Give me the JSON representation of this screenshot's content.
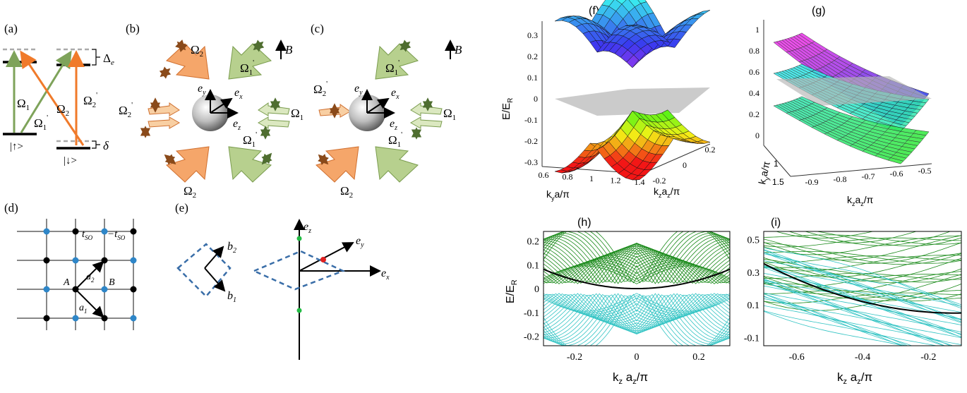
{
  "panels": {
    "a": "(a)",
    "b": "(b)",
    "c": "(c)",
    "d": "(d)",
    "e": "(e)",
    "f": "(f)",
    "g": "(g)",
    "h": "(h)",
    "i": "(i)"
  },
  "level_diagram": {
    "delta_e": "Δ",
    "delta_e_sub": "e",
    "delta": "δ",
    "omega": "Ω",
    "sub1": "1",
    "sub2": "2",
    "prime": "'",
    "spin_up": "|↑>",
    "spin_down": "|↓>"
  },
  "beams": {
    "omega": "Ω",
    "sub1": "1",
    "sub2": "2",
    "prime": "'",
    "B": "B",
    "ex": "e",
    "ex_sub": "x",
    "ey": "e",
    "ey_sub": "y",
    "ez": "e",
    "ez_sub": "z"
  },
  "lattice": {
    "tso": "t",
    "tso_sub": "SO",
    "minus_tso": "−t",
    "A": "A",
    "B": "B",
    "a1": "a",
    "a1_sub": "1",
    "a2": "a",
    "a2_sub": "2"
  },
  "reciprocal": {
    "b1": "b",
    "b1_sub": "1",
    "b2": "b",
    "b2_sub": "2",
    "ex": "e",
    "ex_sub": "x",
    "ey": "e",
    "ey_sub": "y",
    "ez": "e",
    "ez_sub": "z"
  },
  "colors": {
    "orange": "#f07a2a",
    "orange_light": "#f5a66a",
    "green": "#7ea35a",
    "green_light": "#b7d08e",
    "blue_dot": "#2e86c8",
    "green_band": "#1a8a1a",
    "cyan_band": "#33c4c4",
    "dashed": "#3a6ea8"
  },
  "plot_f": {
    "ylabel": "E/E",
    "ylabel_sub": "R",
    "xlabel": "k",
    "xlabel_sub": "y",
    "xlabel_rest": "a/π",
    "zlabel": "k",
    "zlabel_sub": "z",
    "zlabel_mid": "a",
    "zlabel_sub2": "z",
    "zlabel_rest": "/π",
    "yticks": [
      "0.3",
      "0.2",
      "0.1",
      "0",
      "-0.1",
      "-0.2",
      "-0.3"
    ],
    "xticks": [
      "0.6",
      "0.8",
      "1",
      "1.2",
      "1.4"
    ],
    "zticks": [
      "-0.2",
      "0",
      "0.2"
    ]
  },
  "plot_g": {
    "yticks": [
      "1",
      "0.8",
      "0.6",
      "0.4",
      "0.2",
      "0"
    ],
    "xlabel": "k",
    "xlabel_sub": "z",
    "xlabel_mid": "a",
    "xlabel_sub2": "z",
    "xlabel_rest": "/π",
    "xticks": [
      "-0.9",
      "-0.8",
      "-0.7",
      "-0.6",
      "-0.5"
    ],
    "ylabel": "k",
    "ylabel_sub": "y",
    "ylabel_rest": "a/π",
    "kyticks": [
      "1",
      "1.5"
    ]
  },
  "plot_h": {
    "ylabel": "E/E",
    "ylabel_sub": "R",
    "xlabel": "k",
    "xlabel_sub": "z",
    "xlabel_mid": " a",
    "xlabel_sub2": "z",
    "xlabel_rest": "/π",
    "yticks": [
      "0.2",
      "0.1",
      "0",
      "-0.1",
      "-0.2"
    ],
    "xticks": [
      "-0.2",
      "0",
      "0.2"
    ]
  },
  "plot_i": {
    "xlabel": "k",
    "xlabel_sub": "z",
    "xlabel_mid": " a",
    "xlabel_sub2": "z",
    "xlabel_rest": "/π",
    "yticks": [
      "0.5",
      "0.3",
      "0.1",
      "-0.1"
    ],
    "xticks": [
      "-0.6",
      "-0.4",
      "-0.2"
    ]
  }
}
